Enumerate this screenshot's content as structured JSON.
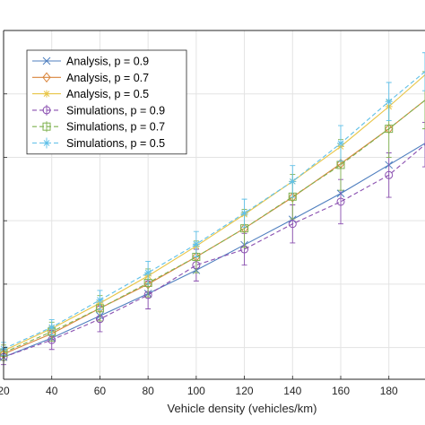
{
  "chart_data": {
    "type": "line",
    "xlabel": "Vehicle density (vehicles/km)",
    "ylabel": "",
    "title": "",
    "xlim": [
      20,
      195
    ],
    "ylim": [
      0,
      5.5
    ],
    "xticks": [
      20,
      40,
      60,
      80,
      100,
      120,
      140,
      160,
      180
    ],
    "tick_labels": [
      "20",
      "40",
      "60",
      "80",
      "100",
      "120",
      "140",
      "160",
      "180"
    ],
    "grid": true,
    "legend_position": "top-left",
    "series": [
      {
        "name": "Analysis, p = 0.9",
        "style": "solid",
        "marker": "x",
        "color": "#4f7fbf",
        "x": [
          20,
          40,
          60,
          80,
          100,
          120,
          140,
          160,
          180,
          195
        ],
        "y": [
          0.35,
          0.65,
          1.0,
          1.35,
          1.72,
          2.12,
          2.52,
          2.93,
          3.38,
          3.72
        ]
      },
      {
        "name": "Analysis, p = 0.7",
        "style": "solid",
        "marker": "diamond",
        "color": "#d9853b",
        "x": [
          20,
          40,
          60,
          80,
          100,
          120,
          140,
          160,
          180,
          195
        ],
        "y": [
          0.4,
          0.72,
          1.12,
          1.5,
          1.93,
          2.38,
          2.87,
          3.4,
          3.95,
          4.4
        ]
      },
      {
        "name": "Analysis, p = 0.5",
        "style": "solid",
        "marker": "star",
        "color": "#e8c547",
        "x": [
          20,
          40,
          60,
          80,
          100,
          120,
          140,
          160,
          180,
          195
        ],
        "y": [
          0.45,
          0.8,
          1.2,
          1.63,
          2.1,
          2.6,
          3.12,
          3.67,
          4.3,
          4.8
        ]
      },
      {
        "name": "Simulations, p = 0.9",
        "style": "dashed",
        "marker": "circle",
        "color": "#8a4fb0",
        "x": [
          20,
          40,
          60,
          80,
          100,
          120,
          140,
          160,
          180,
          195
        ],
        "y": [
          0.35,
          0.62,
          0.95,
          1.33,
          1.8,
          2.05,
          2.45,
          2.8,
          3.22,
          3.7
        ],
        "err": [
          0.12,
          0.15,
          0.2,
          0.22,
          0.25,
          0.25,
          0.3,
          0.35,
          0.35,
          0.35
        ]
      },
      {
        "name": "Simulations, p = 0.7",
        "style": "dashed",
        "marker": "square",
        "color": "#7fb24f",
        "x": [
          20,
          40,
          60,
          80,
          100,
          120,
          140,
          160,
          180,
          195
        ],
        "y": [
          0.42,
          0.75,
          1.12,
          1.52,
          1.93,
          2.38,
          2.88,
          3.38,
          3.95,
          4.4
        ],
        "err": [
          0.12,
          0.15,
          0.2,
          0.22,
          0.25,
          0.3,
          0.35,
          0.4,
          0.45,
          0.45
        ]
      },
      {
        "name": "Simulations, p = 0.5",
        "style": "dashed",
        "marker": "star",
        "color": "#5fc0e8",
        "x": [
          20,
          40,
          60,
          80,
          100,
          120,
          140,
          160,
          180,
          195
        ],
        "y": [
          0.48,
          0.82,
          1.25,
          1.68,
          2.13,
          2.62,
          3.12,
          3.72,
          4.38,
          4.85
        ],
        "err": [
          0.1,
          0.12,
          0.15,
          0.18,
          0.2,
          0.22,
          0.25,
          0.28,
          0.3,
          0.3
        ]
      }
    ]
  }
}
